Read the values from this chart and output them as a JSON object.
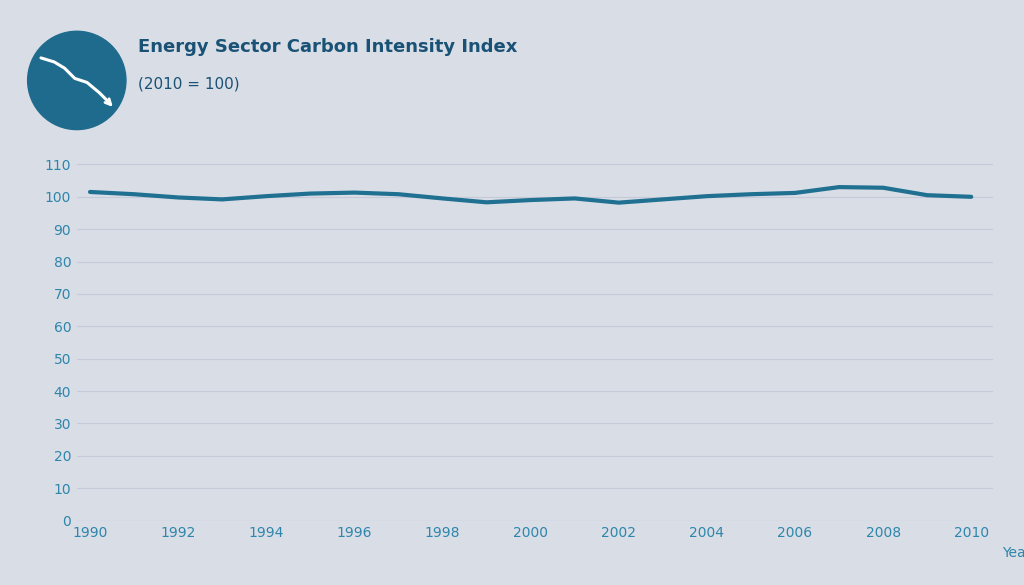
{
  "title": "Energy Sector Carbon Intensity Index",
  "subtitle": "(2010 = 100)",
  "xlabel": "Year",
  "background_color": "#d8dde6",
  "line_color": "#1f7091",
  "line_width": 3.0,
  "years": [
    1990,
    1991,
    1992,
    1993,
    1994,
    1995,
    1996,
    1997,
    1998,
    1999,
    2000,
    2001,
    2002,
    2003,
    2004,
    2005,
    2006,
    2007,
    2008,
    2009,
    2010
  ],
  "values": [
    101.5,
    100.8,
    99.8,
    99.2,
    100.2,
    101.0,
    101.3,
    100.8,
    99.5,
    98.3,
    99.0,
    99.5,
    98.2,
    99.2,
    100.2,
    100.8,
    101.2,
    103.0,
    102.8,
    100.5,
    100.0
  ],
  "ylim": [
    0,
    112
  ],
  "yticks": [
    0,
    10,
    20,
    30,
    40,
    50,
    60,
    70,
    80,
    90,
    100,
    110
  ],
  "xlim": [
    1990,
    2010
  ],
  "xticks": [
    1990,
    1992,
    1994,
    1996,
    1998,
    2000,
    2002,
    2004,
    2006,
    2008,
    2010
  ],
  "title_color": "#1a5276",
  "tick_color": "#2e86ab",
  "grid_color": "#c5cad6",
  "title_fontsize": 13,
  "subtitle_fontsize": 11,
  "tick_fontsize": 10,
  "icon_color": "#1f6b8e"
}
